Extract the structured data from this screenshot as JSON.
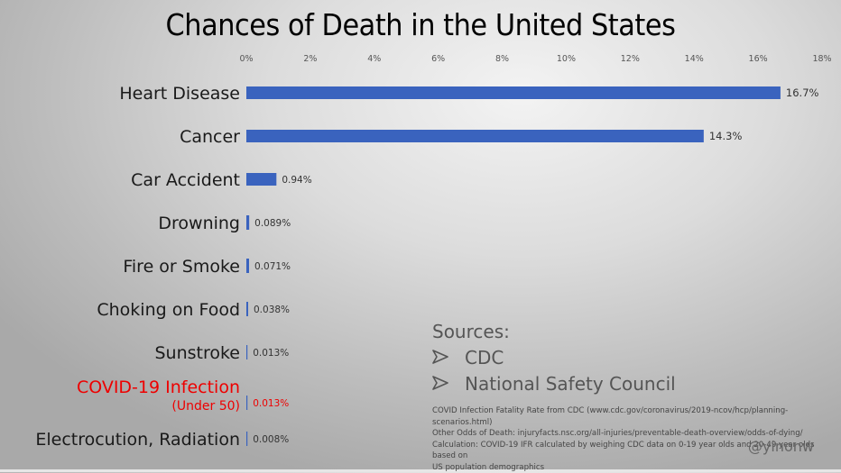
{
  "title": "Chances of Death in the United States",
  "chart_data": {
    "type": "bar",
    "orientation": "horizontal",
    "title": "Chances of Death in the United States",
    "xlabel": "",
    "ylabel": "",
    "xlim": [
      0,
      18
    ],
    "x_ticks": [
      "0%",
      "2%",
      "4%",
      "6%",
      "8%",
      "10%",
      "12%",
      "14%",
      "16%",
      "18%"
    ],
    "x_tick_values": [
      0,
      2,
      4,
      6,
      8,
      10,
      12,
      14,
      16,
      18
    ],
    "x_axis_position": "top",
    "grid": false,
    "legend": "none",
    "bar_color": "#3a63be",
    "highlight_color": "#ee0000",
    "categories": [
      "Heart Disease",
      "Cancer",
      "Car Accident",
      "Drowning",
      "Fire or Smoke",
      "Choking on Food",
      "Sunstroke",
      "COVID-19 Infection",
      "Electrocution, Radiation"
    ],
    "category_subtitles": [
      "",
      "",
      "",
      "",
      "",
      "",
      "",
      "(Under 50)",
      ""
    ],
    "highlighted": [
      false,
      false,
      false,
      false,
      false,
      false,
      false,
      true,
      false
    ],
    "values": [
      16.7,
      14.3,
      0.94,
      0.089,
      0.071,
      0.038,
      0.013,
      0.013,
      0.008
    ],
    "value_labels": [
      "16.7%",
      "14.3%",
      "0.94%",
      "0.089%",
      "0.071%",
      "0.038%",
      "0.013%",
      "0.013%",
      "0.008%"
    ]
  },
  "sources": {
    "heading": "Sources:",
    "items": [
      "CDC",
      "National Safety Council"
    ],
    "bullet_icon": "arrowhead-bullet"
  },
  "notes": [
    "COVID Infection Fatality Rate from CDC  (www.cdc.gov/coronavirus/2019-ncov/hcp/planning-scenarios.html)",
    "Other Odds of Death: injuryfacts.nsc.org/all-injuries/preventable-death-overview/odds-of-dying/",
    "Calculation: COVID-19 IFR calculated by weighing CDC data on 0-19 year olds and 20-49 year olds based on",
    "US population demographics"
  ],
  "handle": "@yinonw"
}
